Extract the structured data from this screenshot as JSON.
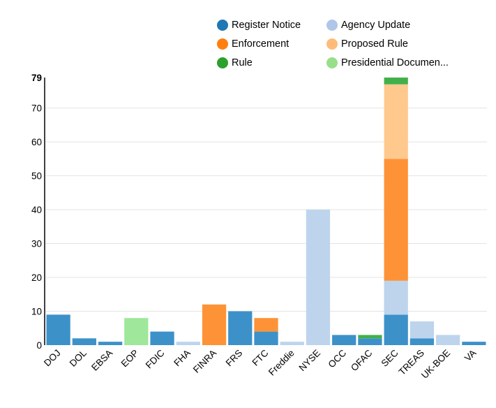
{
  "chart_data": {
    "type": "bar",
    "stacked": true,
    "title": "",
    "xlabel": "",
    "ylabel": "",
    "ylim": [
      0,
      79
    ],
    "yticks": [
      0,
      10,
      20,
      30,
      40,
      50,
      60,
      70,
      79
    ],
    "grid": true,
    "legend_position": "top",
    "categories": [
      "DOJ",
      "DOL",
      "EBSA",
      "EOP",
      "FDIC",
      "FHA",
      "FINRA",
      "FRS",
      "FTC",
      "Freddie",
      "NYSE",
      "OCC",
      "OFAC",
      "SEC",
      "TREAS",
      "UK-BOE",
      "VA"
    ],
    "series": [
      {
        "name": "Register Notice",
        "color": "#3d91c9",
        "legend_color": "#1f77b4",
        "values": [
          9,
          2,
          1,
          0,
          4,
          0,
          0,
          10,
          4,
          0,
          0,
          3,
          2,
          9,
          2,
          0,
          1
        ]
      },
      {
        "name": "Agency Update",
        "color": "#bdd4ec",
        "legend_color": "#aec7e8",
        "values": [
          0,
          0,
          0,
          0,
          0,
          1,
          0,
          0,
          0,
          1,
          40,
          0,
          0,
          10,
          5,
          3,
          0
        ]
      },
      {
        "name": "Enforcement",
        "color": "#fd9336",
        "legend_color": "#ff7f0e",
        "values": [
          0,
          0,
          0,
          0,
          0,
          0,
          12,
          0,
          4,
          0,
          0,
          0,
          0,
          36,
          0,
          0,
          0
        ]
      },
      {
        "name": "Proposed Rule",
        "color": "#ffc98e",
        "legend_color": "#ffbb78",
        "values": [
          0,
          0,
          0,
          0,
          0,
          0,
          0,
          0,
          0,
          0,
          0,
          0,
          0,
          22,
          0,
          0,
          0
        ]
      },
      {
        "name": "Rule",
        "color": "#42b04a",
        "legend_color": "#2ca02c",
        "values": [
          0,
          0,
          0,
          0,
          0,
          0,
          0,
          0,
          0,
          0,
          0,
          0,
          1,
          2,
          0,
          0,
          0
        ]
      },
      {
        "name": "Presidential Documen...",
        "color": "#9fe79b",
        "legend_color": "#98df8a",
        "values": [
          0,
          0,
          0,
          8,
          0,
          0,
          0,
          0,
          0,
          0,
          0,
          0,
          0,
          0,
          0,
          0,
          0
        ]
      }
    ]
  }
}
